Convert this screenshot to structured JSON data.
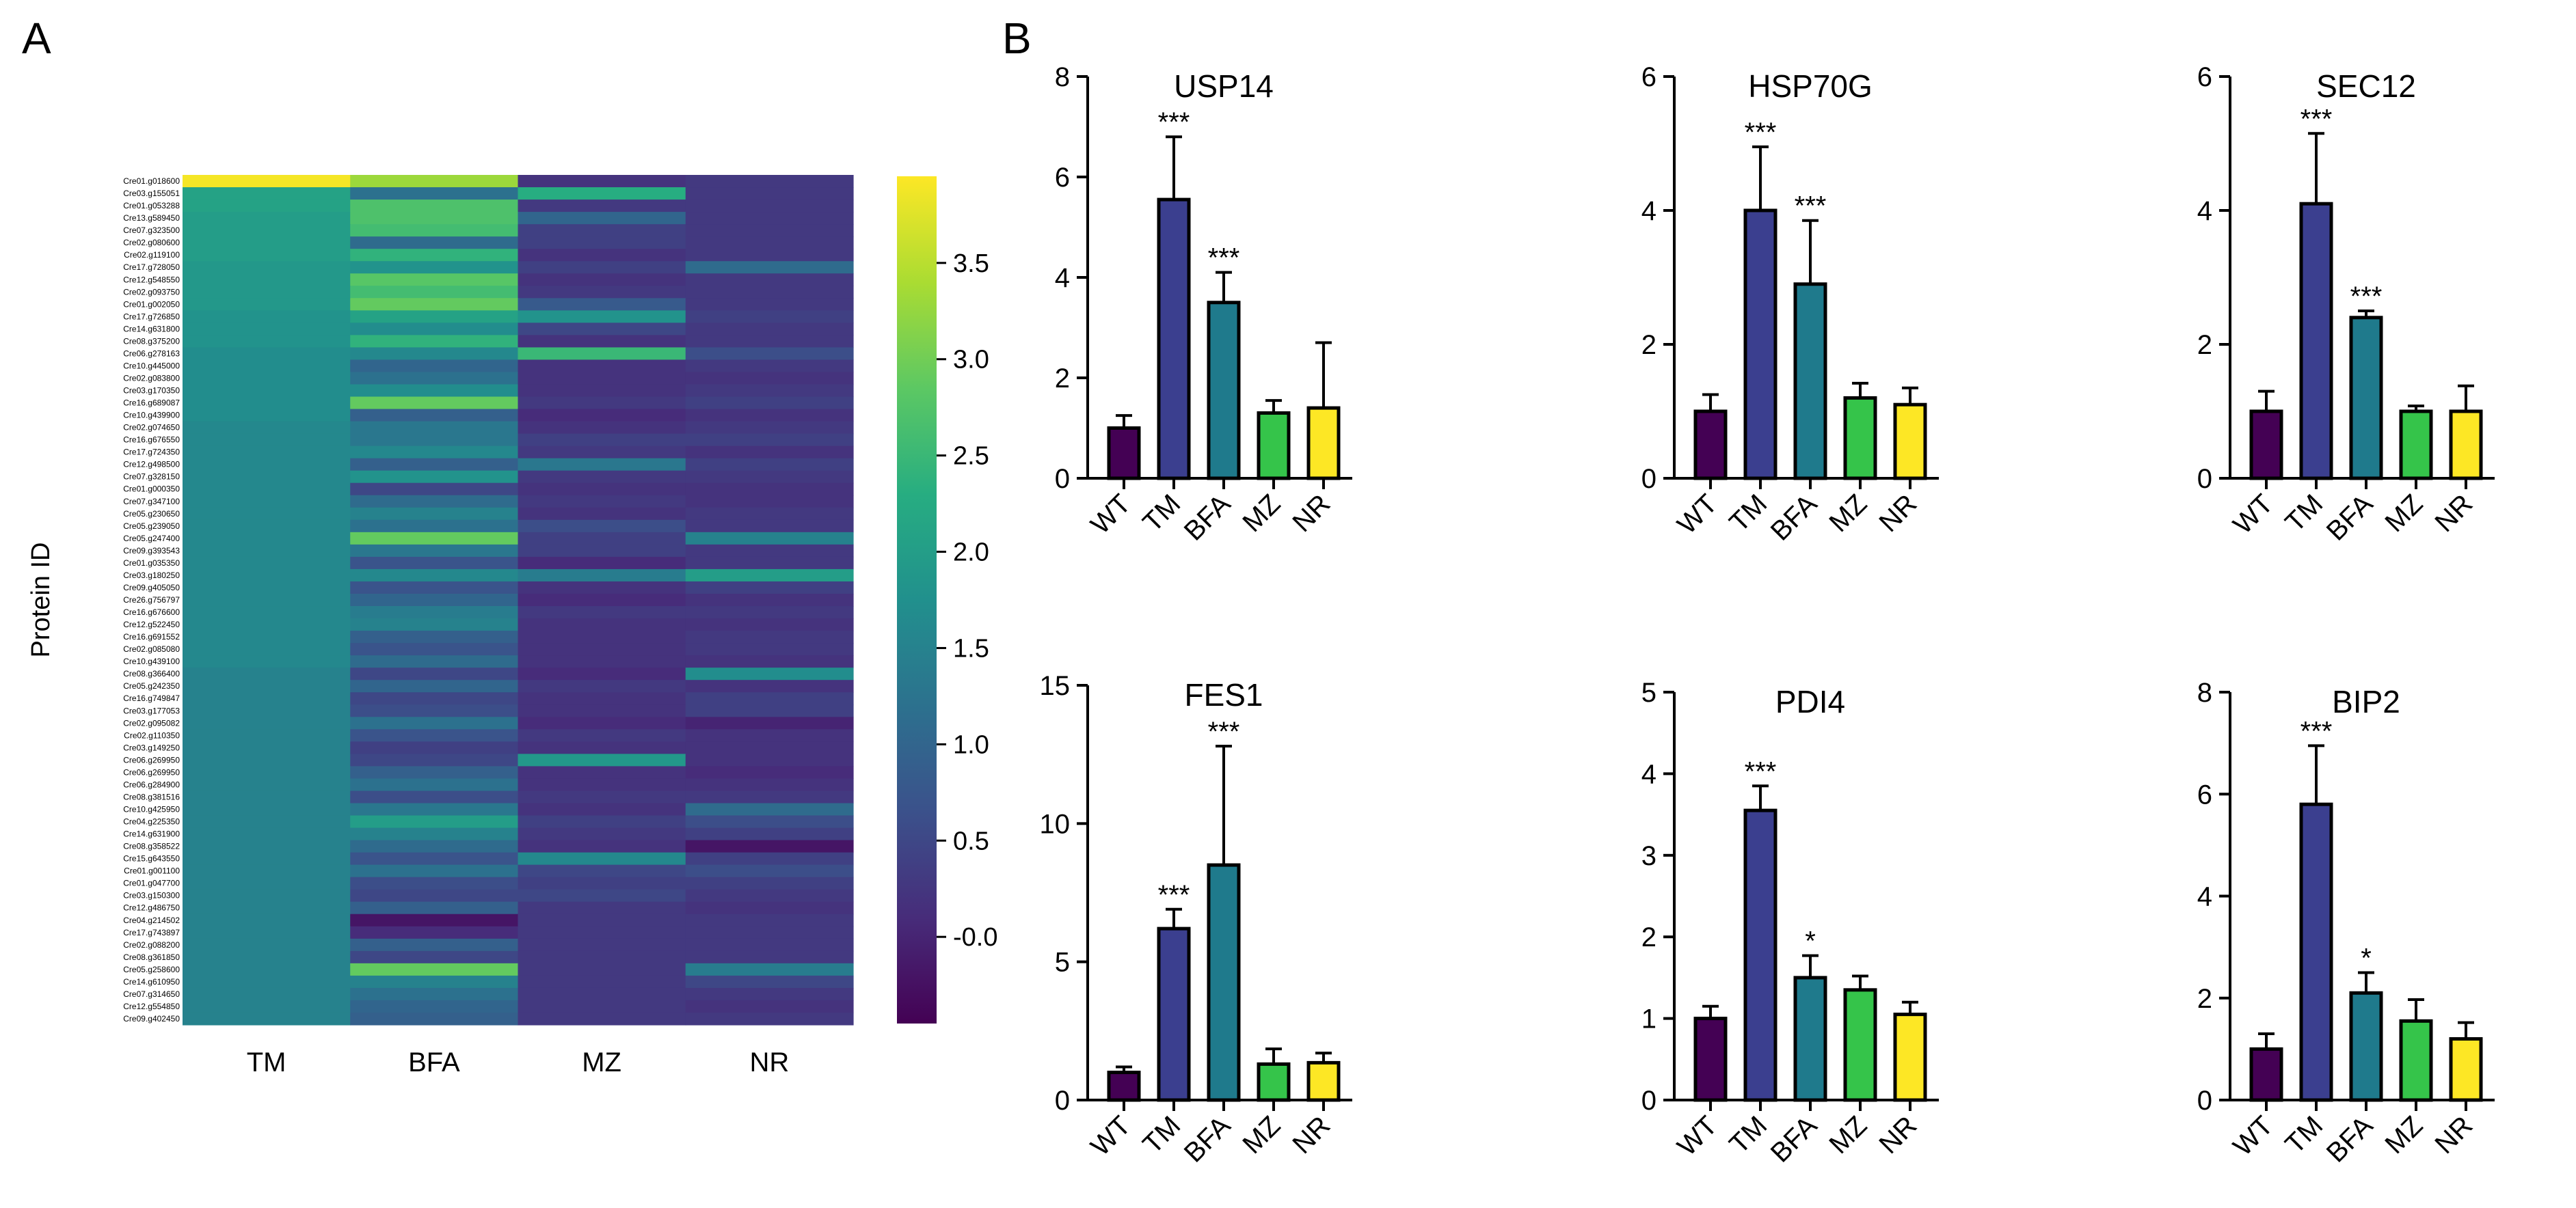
{
  "panels": {
    "left": "A",
    "right": "B"
  },
  "colors": {
    "WT": "#440154",
    "TM": "#3b3f8f",
    "BFA": "#1f7a8c",
    "MZ": "#35c44a",
    "NR": "#fde725"
  },
  "chart_data": [
    {
      "type": "heatmap",
      "title": "",
      "ylabel": "Protein ID",
      "columns": [
        "TM",
        "BFA",
        "MZ",
        "NR"
      ],
      "rows": [
        "Cre01.g018600",
        "Cre03.g155051",
        "Cre01.g053288",
        "Cre13.g589450",
        "Cre07.g323500",
        "Cre02.g080600",
        "Cre02.g119100",
        "Cre17.g728050",
        "Cre12.g548550",
        "Cre02.g093750",
        "Cre01.g002050",
        "Cre17.g726850",
        "Cre14.g631800",
        "Cre08.g375200",
        "Cre06.g278163",
        "Cre10.g445000",
        "Cre02.g083800",
        "Cre03.g170350",
        "Cre16.g689087",
        "Cre10.g439900",
        "Cre02.g074650",
        "Cre16.g676550",
        "Cre17.g724350",
        "Cre12.g498500",
        "Cre07.g328150",
        "Cre01.g000350",
        "Cre07.g347100",
        "Cre05.g230650",
        "Cre05.g239050",
        "Cre05.g247400",
        "Cre09.g393543",
        "Cre01.g035350",
        "Cre03.g180250",
        "Cre09.g405050",
        "Cre26.g756797",
        "Cre16.g676600",
        "Cre12.g522450",
        "Cre16.g691552",
        "Cre02.g085080",
        "Cre10.g439100",
        "Cre08.g366400",
        "Cre05.g242350",
        "Cre16.g749847",
        "Cre03.g177053",
        "Cre02.g095082",
        "Cre02.g110350",
        "Cre03.g149250",
        "Cre06.g269950",
        "Cre06.g269950",
        "Cre06.g284900",
        "Cre08.g381516",
        "Cre10.g425950",
        "Cre04.g225350",
        "Cre14.g631900",
        "Cre08.g358522",
        "Cre15.g643550",
        "Cre01.g001100",
        "Cre01.g047700",
        "Cre03.g150300",
        "Cre12.g486750",
        "Cre04.g214502",
        "Cre17.g743897",
        "Cre02.g088200",
        "Cre08.g361850",
        "Cre05.g258600",
        "Cre14.g610950",
        "Cre07.g314650",
        "Cre12.g554850",
        "Cre09.g402450"
      ],
      "values": [
        [
          3.9,
          3.3,
          0.2,
          0.3
        ],
        [
          2.1,
          1.2,
          2.3,
          0.3
        ],
        [
          2.1,
          2.7,
          0.3,
          0.3
        ],
        [
          2.0,
          2.7,
          1.0,
          0.3
        ],
        [
          2.0,
          2.6,
          0.4,
          0.3
        ],
        [
          2.0,
          1.1,
          0.4,
          0.3
        ],
        [
          2.0,
          2.4,
          0.2,
          0.3
        ],
        [
          1.9,
          1.8,
          0.4,
          1.1
        ],
        [
          1.9,
          2.8,
          0.2,
          0.3
        ],
        [
          1.9,
          2.6,
          0.3,
          0.3
        ],
        [
          1.9,
          2.9,
          0.8,
          0.3
        ],
        [
          1.8,
          2.1,
          1.8,
          0.4
        ],
        [
          1.8,
          1.7,
          0.5,
          0.3
        ],
        [
          1.8,
          2.4,
          0.2,
          0.3
        ],
        [
          1.7,
          1.6,
          2.5,
          0.6
        ],
        [
          1.7,
          1.0,
          0.2,
          0.3
        ],
        [
          1.7,
          1.2,
          0.2,
          0.2
        ],
        [
          1.7,
          1.7,
          0.2,
          0.3
        ],
        [
          1.7,
          2.9,
          0.3,
          0.4
        ],
        [
          1.7,
          0.9,
          0.1,
          0.2
        ],
        [
          1.6,
          1.3,
          0.2,
          0.3
        ],
        [
          1.6,
          1.3,
          0.4,
          0.4
        ],
        [
          1.6,
          1.6,
          0.3,
          0.2
        ],
        [
          1.6,
          0.9,
          1.3,
          0.4
        ],
        [
          1.6,
          1.8,
          0.3,
          0.3
        ],
        [
          1.6,
          0.5,
          0.2,
          0.2
        ],
        [
          1.6,
          1.1,
          0.3,
          0.2
        ],
        [
          1.6,
          1.5,
          0.2,
          0.3
        ],
        [
          1.6,
          1.2,
          0.6,
          0.3
        ],
        [
          1.6,
          2.9,
          0.4,
          1.5
        ],
        [
          1.6,
          1.3,
          0.4,
          0.3
        ],
        [
          1.6,
          0.7,
          0.1,
          0.3
        ],
        [
          1.6,
          1.6,
          1.4,
          2.0
        ],
        [
          1.6,
          0.7,
          0.2,
          0.4
        ],
        [
          1.6,
          1.0,
          0.1,
          0.2
        ],
        [
          1.6,
          1.4,
          0.3,
          0.3
        ],
        [
          1.6,
          1.5,
          0.2,
          0.2
        ],
        [
          1.6,
          0.9,
          0.2,
          0.3
        ],
        [
          1.6,
          0.7,
          0.2,
          0.3
        ],
        [
          1.6,
          1.1,
          0.2,
          0.2
        ],
        [
          1.5,
          0.5,
          0.1,
          1.7
        ],
        [
          1.5,
          1.0,
          0.3,
          0.2
        ],
        [
          1.5,
          0.5,
          0.2,
          0.4
        ],
        [
          1.5,
          0.6,
          0.2,
          0.4
        ],
        [
          1.5,
          1.2,
          0.1,
          0.0
        ],
        [
          1.5,
          0.7,
          0.3,
          0.2
        ],
        [
          1.5,
          0.4,
          0.2,
          0.2
        ],
        [
          1.5,
          0.5,
          1.9,
          0.2
        ],
        [
          1.5,
          0.9,
          0.2,
          0.1
        ],
        [
          1.5,
          1.2,
          0.2,
          0.2
        ],
        [
          1.5,
          0.6,
          0.3,
          0.3
        ],
        [
          1.5,
          1.3,
          0.2,
          1.1
        ],
        [
          1.5,
          2.0,
          0.4,
          0.6
        ],
        [
          1.5,
          1.5,
          0.3,
          0.4
        ],
        [
          1.5,
          1.1,
          0.2,
          -0.2
        ],
        [
          1.5,
          0.7,
          1.6,
          0.4
        ],
        [
          1.5,
          1.2,
          0.5,
          0.6
        ],
        [
          1.5,
          0.6,
          0.4,
          0.4
        ],
        [
          1.5,
          0.5,
          0.5,
          0.3
        ],
        [
          1.5,
          0.9,
          0.3,
          0.2
        ],
        [
          1.5,
          -0.2,
          0.3,
          0.3
        ],
        [
          1.5,
          0.1,
          0.3,
          0.3
        ],
        [
          1.5,
          0.9,
          0.3,
          0.3
        ],
        [
          1.5,
          0.5,
          0.3,
          0.3
        ],
        [
          1.5,
          2.9,
          0.3,
          1.4
        ],
        [
          1.5,
          1.5,
          0.3,
          0.5
        ],
        [
          1.5,
          1.2,
          0.3,
          0.3
        ],
        [
          1.5,
          1.0,
          0.3,
          0.2
        ],
        [
          1.5,
          0.9,
          0.3,
          0.3
        ]
      ],
      "colorbar": {
        "ticks": [
          -0.0,
          0.5,
          1.0,
          1.5,
          2.0,
          2.5,
          3.0,
          3.5
        ],
        "tick_labels": [
          "-0.0",
          "0.5",
          "1.0",
          "1.5",
          "2.0",
          "2.5",
          "3.0",
          "3.5"
        ],
        "range": [
          -0.45,
          3.95
        ],
        "colormap": "viridis"
      }
    },
    {
      "type": "bar",
      "title": "USP14",
      "categories": [
        "WT",
        "TM",
        "BFA",
        "MZ",
        "NR"
      ],
      "values": [
        1.0,
        5.55,
        3.5,
        1.3,
        1.4
      ],
      "errors": [
        0.25,
        1.25,
        0.6,
        0.25,
        1.3
      ],
      "significance": [
        "",
        "***",
        "***",
        "",
        ""
      ],
      "ylim": [
        0,
        8
      ],
      "yticks": [
        0,
        2,
        4,
        6,
        8
      ]
    },
    {
      "type": "bar",
      "title": "HSP70G",
      "categories": [
        "WT",
        "TM",
        "BFA",
        "MZ",
        "NR"
      ],
      "values": [
        1.0,
        4.0,
        2.9,
        1.2,
        1.1
      ],
      "errors": [
        0.25,
        0.95,
        0.95,
        0.22,
        0.25
      ],
      "significance": [
        "",
        "***",
        "***",
        "",
        ""
      ],
      "ylim": [
        0,
        6
      ],
      "yticks": [
        0,
        2,
        4,
        6
      ]
    },
    {
      "type": "bar",
      "title": "SEC12",
      "categories": [
        "WT",
        "TM",
        "BFA",
        "MZ",
        "NR"
      ],
      "values": [
        1.0,
        4.1,
        2.4,
        1.0,
        1.0
      ],
      "errors": [
        0.3,
        1.05,
        0.1,
        0.08,
        0.38
      ],
      "significance": [
        "",
        "***",
        "***",
        "",
        ""
      ],
      "ylim": [
        0,
        6
      ],
      "yticks": [
        0,
        2,
        4,
        6
      ]
    },
    {
      "type": "bar",
      "title": "FES1",
      "categories": [
        "WT",
        "TM",
        "BFA",
        "MZ",
        "NR"
      ],
      "values": [
        1.0,
        6.2,
        8.5,
        1.3,
        1.35
      ],
      "errors": [
        0.2,
        0.7,
        4.3,
        0.55,
        0.35
      ],
      "significance": [
        "",
        "***",
        "***",
        "",
        ""
      ],
      "ylim": [
        0,
        15
      ],
      "yticks": [
        0,
        5,
        10,
        15
      ]
    },
    {
      "type": "bar",
      "title": "PDI4",
      "categories": [
        "WT",
        "TM",
        "BFA",
        "MZ",
        "NR"
      ],
      "values": [
        1.0,
        3.55,
        1.5,
        1.35,
        1.05
      ],
      "errors": [
        0.15,
        0.3,
        0.27,
        0.17,
        0.15
      ],
      "significance": [
        "",
        "***",
        "*",
        "",
        ""
      ],
      "ylim": [
        0,
        5
      ],
      "yticks": [
        0,
        1,
        2,
        3,
        4,
        5
      ]
    },
    {
      "type": "bar",
      "title": "BIP2",
      "categories": [
        "WT",
        "TM",
        "BFA",
        "MZ",
        "NR"
      ],
      "values": [
        1.0,
        5.8,
        2.1,
        1.55,
        1.2
      ],
      "errors": [
        0.3,
        1.15,
        0.4,
        0.42,
        0.32
      ],
      "significance": [
        "",
        "***",
        "*",
        "",
        ""
      ],
      "ylim": [
        0,
        8
      ],
      "yticks": [
        0,
        2,
        4,
        6,
        8
      ]
    }
  ]
}
